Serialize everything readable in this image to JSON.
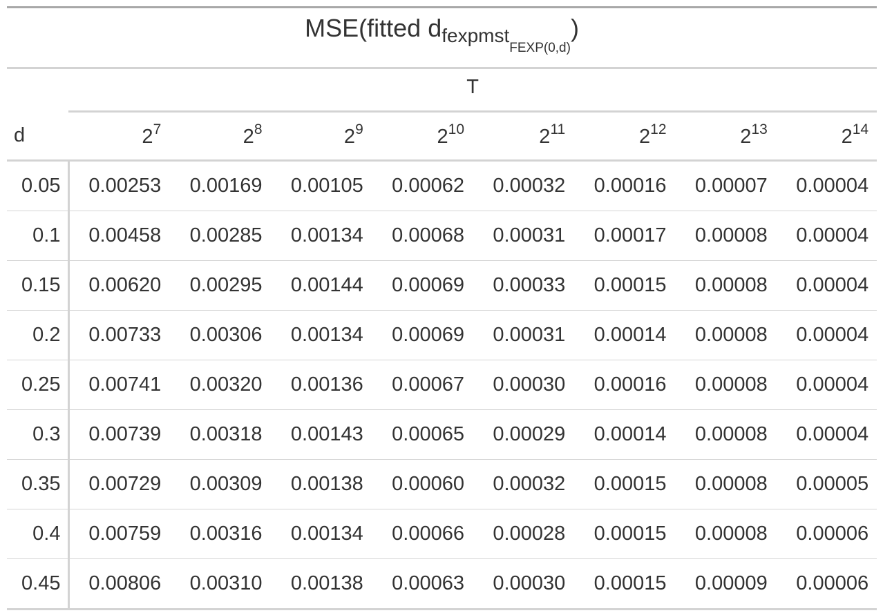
{
  "title": {
    "main": "MSE(fitted d",
    "sub1": "fexpmst",
    "sub2": "FEXP(0,d)",
    "close": ")"
  },
  "spanner_label": "T",
  "stub_header": "d",
  "columns": [
    {
      "base": "2",
      "exp": "7"
    },
    {
      "base": "2",
      "exp": "8"
    },
    {
      "base": "2",
      "exp": "9"
    },
    {
      "base": "2",
      "exp": "10"
    },
    {
      "base": "2",
      "exp": "11"
    },
    {
      "base": "2",
      "exp": "12"
    },
    {
      "base": "2",
      "exp": "13"
    },
    {
      "base": "2",
      "exp": "14"
    }
  ],
  "rows": [
    {
      "d": "0.05",
      "values": [
        "0.00253",
        "0.00169",
        "0.00105",
        "0.00062",
        "0.00032",
        "0.00016",
        "0.00007",
        "0.00004"
      ]
    },
    {
      "d": "0.1",
      "values": [
        "0.00458",
        "0.00285",
        "0.00134",
        "0.00068",
        "0.00031",
        "0.00017",
        "0.00008",
        "0.00004"
      ]
    },
    {
      "d": "0.15",
      "values": [
        "0.00620",
        "0.00295",
        "0.00144",
        "0.00069",
        "0.00033",
        "0.00015",
        "0.00008",
        "0.00004"
      ]
    },
    {
      "d": "0.2",
      "values": [
        "0.00733",
        "0.00306",
        "0.00134",
        "0.00069",
        "0.00031",
        "0.00014",
        "0.00008",
        "0.00004"
      ]
    },
    {
      "d": "0.25",
      "values": [
        "0.00741",
        "0.00320",
        "0.00136",
        "0.00067",
        "0.00030",
        "0.00016",
        "0.00008",
        "0.00004"
      ]
    },
    {
      "d": "0.3",
      "values": [
        "0.00739",
        "0.00318",
        "0.00143",
        "0.00065",
        "0.00029",
        "0.00014",
        "0.00008",
        "0.00004"
      ]
    },
    {
      "d": "0.35",
      "values": [
        "0.00729",
        "0.00309",
        "0.00138",
        "0.00060",
        "0.00032",
        "0.00015",
        "0.00008",
        "0.00005"
      ]
    },
    {
      "d": "0.4",
      "values": [
        "0.00759",
        "0.00316",
        "0.00134",
        "0.00066",
        "0.00028",
        "0.00015",
        "0.00008",
        "0.00006"
      ]
    },
    {
      "d": "0.45",
      "values": [
        "0.00806",
        "0.00310",
        "0.00138",
        "0.00063",
        "0.00030",
        "0.00015",
        "0.00009",
        "0.00006"
      ]
    }
  ]
}
